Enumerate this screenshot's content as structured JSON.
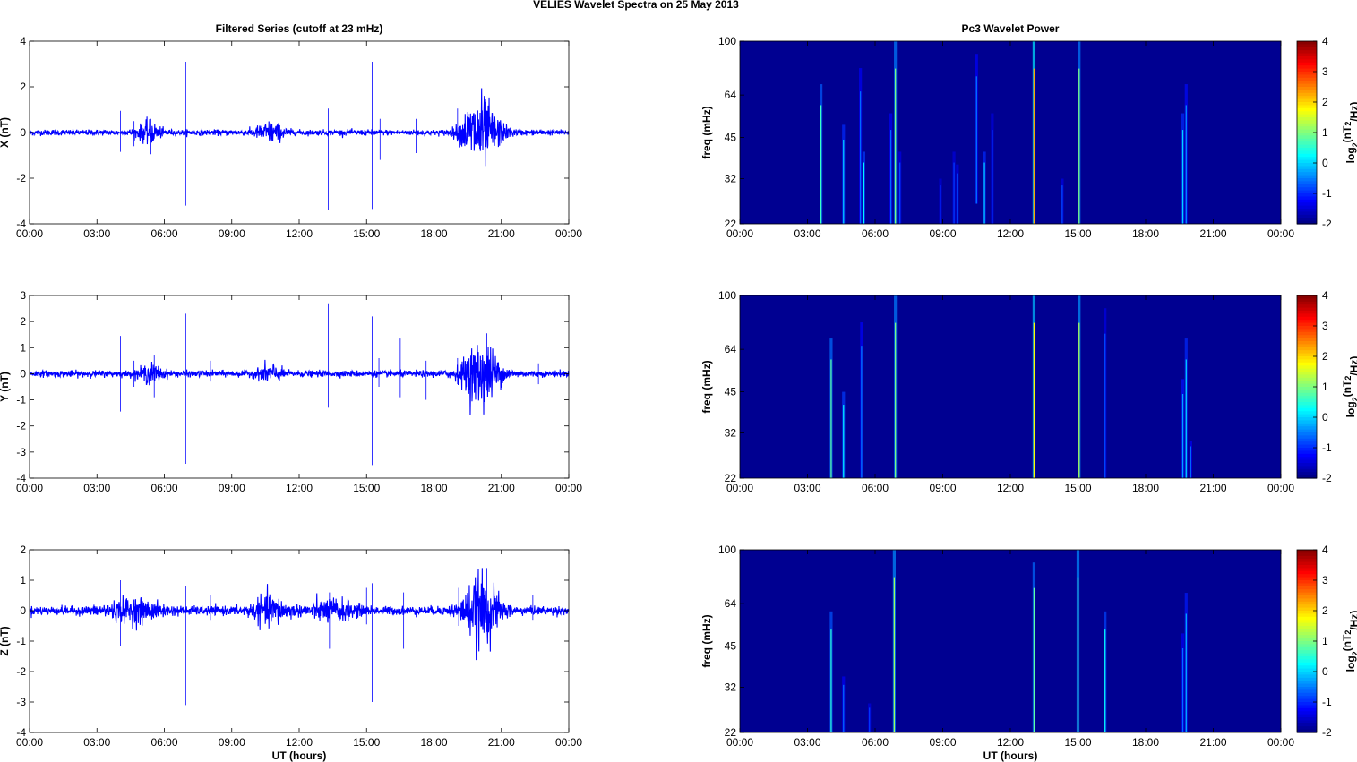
{
  "figure_title": "VELIES Wavelet Spectra on 25 May       2013",
  "chart_data": [
    {
      "type": "line",
      "title": "Filtered Series (cutoff at 23 mHz)",
      "xlabel": "",
      "ylabel": "X (nT)",
      "x_ticks": [
        "00:00",
        "03:00",
        "06:00",
        "09:00",
        "12:00",
        "15:00",
        "18:00",
        "21:00",
        "00:00"
      ],
      "y_ticks": [
        "4",
        "2",
        "0",
        "-2",
        "-4"
      ],
      "xlim": [
        0,
        24
      ],
      "ylim": [
        -4,
        4
      ],
      "series_color": "#0000ff",
      "noise_level": 0.06,
      "spikes": [
        [
          4.05,
          0.95,
          -0.85
        ],
        [
          4.65,
          0.5,
          -0.6
        ],
        [
          5.4,
          0.6,
          -0.95
        ],
        [
          6.95,
          3.1,
          -3.2
        ],
        [
          10.7,
          0.4,
          -0.3
        ],
        [
          13.3,
          1.05,
          -3.4
        ],
        [
          15.25,
          3.1,
          -3.35
        ],
        [
          15.6,
          0.6,
          -1.2
        ],
        [
          17.2,
          0.6,
          -0.9
        ],
        [
          19.05,
          1.05,
          -0.4
        ],
        [
          19.5,
          0.9,
          -0.4
        ],
        [
          20.3,
          1.45,
          -0.55
        ]
      ],
      "bursts": [
        [
          5.3,
          0.5,
          0.2
        ],
        [
          10.7,
          0.6,
          0.2
        ],
        [
          20.2,
          0.8,
          0.55
        ],
        [
          19.8,
          0.6,
          0.3
        ]
      ]
    },
    {
      "type": "line",
      "title": "",
      "xlabel": "",
      "ylabel": "Y (nT)",
      "x_ticks": [
        "00:00",
        "03:00",
        "06:00",
        "09:00",
        "12:00",
        "15:00",
        "18:00",
        "21:00",
        "00:00"
      ],
      "y_ticks": [
        "3",
        "2",
        "1",
        "0",
        "-1",
        "-2",
        "-3",
        "-4"
      ],
      "xlim": [
        0,
        24
      ],
      "ylim": [
        -4,
        3
      ],
      "series_color": "#0000ff",
      "noise_level": 0.06,
      "spikes": [
        [
          4.05,
          1.45,
          -1.45
        ],
        [
          4.65,
          0.5,
          -0.5
        ],
        [
          5.55,
          0.7,
          -0.9
        ],
        [
          6.95,
          2.3,
          -3.45
        ],
        [
          8.05,
          0.5,
          -0.3
        ],
        [
          13.3,
          2.7,
          -1.3
        ],
        [
          15.25,
          2.2,
          -3.5
        ],
        [
          15.55,
          0.6,
          -0.5
        ],
        [
          16.5,
          1.35,
          -0.9
        ],
        [
          17.65,
          0.5,
          -1.0
        ],
        [
          19.05,
          0.6,
          -0.4
        ],
        [
          20.35,
          1.55,
          -0.65
        ],
        [
          22.65,
          0.4,
          -0.4
        ]
      ],
      "bursts": [
        [
          5.4,
          0.5,
          0.15
        ],
        [
          10.7,
          0.5,
          0.15
        ],
        [
          20.1,
          0.8,
          0.6
        ]
      ]
    },
    {
      "type": "line",
      "title": "",
      "xlabel": "UT (hours)",
      "ylabel": "Z (nT)",
      "x_ticks": [
        "00:00",
        "03:00",
        "06:00",
        "09:00",
        "12:00",
        "15:00",
        "18:00",
        "21:00",
        "00:00"
      ],
      "y_ticks": [
        "2",
        "1",
        "0",
        "-1",
        "-2",
        "-3",
        "-4"
      ],
      "xlim": [
        0,
        24
      ],
      "ylim": [
        -4,
        2
      ],
      "series_color": "#0000ff",
      "noise_level": 0.07,
      "spikes": [
        [
          4.05,
          1.0,
          -1.15
        ],
        [
          6.95,
          0.8,
          -3.1
        ],
        [
          8.05,
          0.5,
          -0.3
        ],
        [
          13.35,
          0.6,
          -1.25
        ],
        [
          15.0,
          0.75,
          -0.45
        ],
        [
          15.25,
          0.9,
          -3.0
        ],
        [
          16.65,
          0.6,
          -1.25
        ],
        [
          19.1,
          0.75,
          -0.5
        ],
        [
          20.35,
          1.4,
          -0.7
        ],
        [
          22.4,
          0.5,
          -0.3
        ]
      ],
      "bursts": [
        [
          4.6,
          1.2,
          0.15
        ],
        [
          10.7,
          0.8,
          0.2
        ],
        [
          20.1,
          0.8,
          0.5
        ],
        [
          13.5,
          1.0,
          0.15
        ]
      ]
    },
    {
      "type": "heatmap",
      "title": "Pc3 Wavelet Power",
      "xlabel": "",
      "ylabel": "freq (mHz)",
      "x_ticks": [
        "00:00",
        "03:00",
        "06:00",
        "09:00",
        "12:00",
        "15:00",
        "18:00",
        "21:00",
        "00:00"
      ],
      "y_ticks": [
        "100",
        "64",
        "45",
        "32",
        "22"
      ],
      "colorbar_label": "log2(nT2/Hz)",
      "colorbar_ticks": [
        "4",
        "3",
        "2",
        "1",
        "0",
        "-1",
        "-2"
      ],
      "clim": [
        -2,
        4
      ],
      "ylim_mhz": [
        22,
        100
      ],
      "background_level": -1.9,
      "features": [
        [
          3.6,
          22,
          70,
          0.6
        ],
        [
          4.6,
          22,
          50,
          0.0
        ],
        [
          5.35,
          22,
          80,
          -0.6
        ],
        [
          5.5,
          22,
          40,
          0.2
        ],
        [
          6.7,
          22,
          55,
          -0.6
        ],
        [
          6.9,
          22,
          100,
          1.0
        ],
        [
          7.1,
          22,
          40,
          -0.8
        ],
        [
          8.9,
          22,
          32,
          -1.0
        ],
        [
          9.5,
          22,
          40,
          -0.9
        ],
        [
          9.65,
          22,
          36,
          -0.8
        ],
        [
          10.5,
          26,
          90,
          -0.5
        ],
        [
          10.85,
          22,
          40,
          0.0
        ],
        [
          11.2,
          22,
          55,
          -0.9
        ],
        [
          13.05,
          22,
          100,
          2.3
        ],
        [
          14.3,
          22,
          32,
          -0.8
        ],
        [
          15.05,
          22,
          100,
          1.0
        ],
        [
          19.65,
          22,
          55,
          0.0
        ],
        [
          19.8,
          22,
          70,
          -0.4
        ]
      ]
    },
    {
      "type": "heatmap",
      "title": "",
      "xlabel": "",
      "ylabel": "freq (mHz)",
      "x_ticks": [
        "00:00",
        "03:00",
        "06:00",
        "09:00",
        "12:00",
        "15:00",
        "18:00",
        "21:00",
        "00:00"
      ],
      "y_ticks": [
        "100",
        "64",
        "45",
        "32",
        "22"
      ],
      "colorbar_label": "log2(nT2/Hz)",
      "colorbar_ticks": [
        "4",
        "3",
        "2",
        "1",
        "0",
        "-1",
        "-2"
      ],
      "clim": [
        -2,
        4
      ],
      "ylim_mhz": [
        22,
        100
      ],
      "background_level": -1.9,
      "features": [
        [
          4.05,
          22,
          70,
          0.8
        ],
        [
          4.6,
          22,
          45,
          0.2
        ],
        [
          5.4,
          22,
          80,
          -0.5
        ],
        [
          6.9,
          22,
          100,
          1.0
        ],
        [
          13.05,
          22,
          100,
          1.8
        ],
        [
          15.05,
          22,
          100,
          1.3
        ],
        [
          16.2,
          22,
          90,
          -0.8
        ],
        [
          19.65,
          22,
          50,
          -0.3
        ],
        [
          19.8,
          22,
          70,
          0.0
        ],
        [
          20.0,
          22,
          30,
          -0.6
        ]
      ]
    },
    {
      "type": "heatmap",
      "title": "",
      "xlabel": "UT (hours)",
      "ylabel": "freq (mHz)",
      "x_ticks": [
        "00:00",
        "03:00",
        "06:00",
        "09:00",
        "12:00",
        "15:00",
        "18:00",
        "21:00",
        "00:00"
      ],
      "y_ticks": [
        "100",
        "64",
        "45",
        "32",
        "22"
      ],
      "colorbar_label": "log2(nT2/Hz)",
      "colorbar_ticks": [
        "4",
        "3",
        "2",
        "1",
        "0",
        "-1",
        "-2"
      ],
      "clim": [
        -2,
        4
      ],
      "ylim_mhz": [
        22,
        100
      ],
      "background_level": -1.9,
      "features": [
        [
          4.05,
          22,
          60,
          0.5
        ],
        [
          4.6,
          22,
          35,
          -0.6
        ],
        [
          5.75,
          22,
          28,
          -0.9
        ],
        [
          6.85,
          22,
          100,
          1.2
        ],
        [
          13.05,
          22,
          90,
          0.8
        ],
        [
          15.0,
          22,
          100,
          1.2
        ],
        [
          16.2,
          22,
          60,
          0.3
        ],
        [
          19.65,
          22,
          50,
          -0.6
        ],
        [
          19.8,
          22,
          70,
          -0.2
        ]
      ]
    }
  ]
}
